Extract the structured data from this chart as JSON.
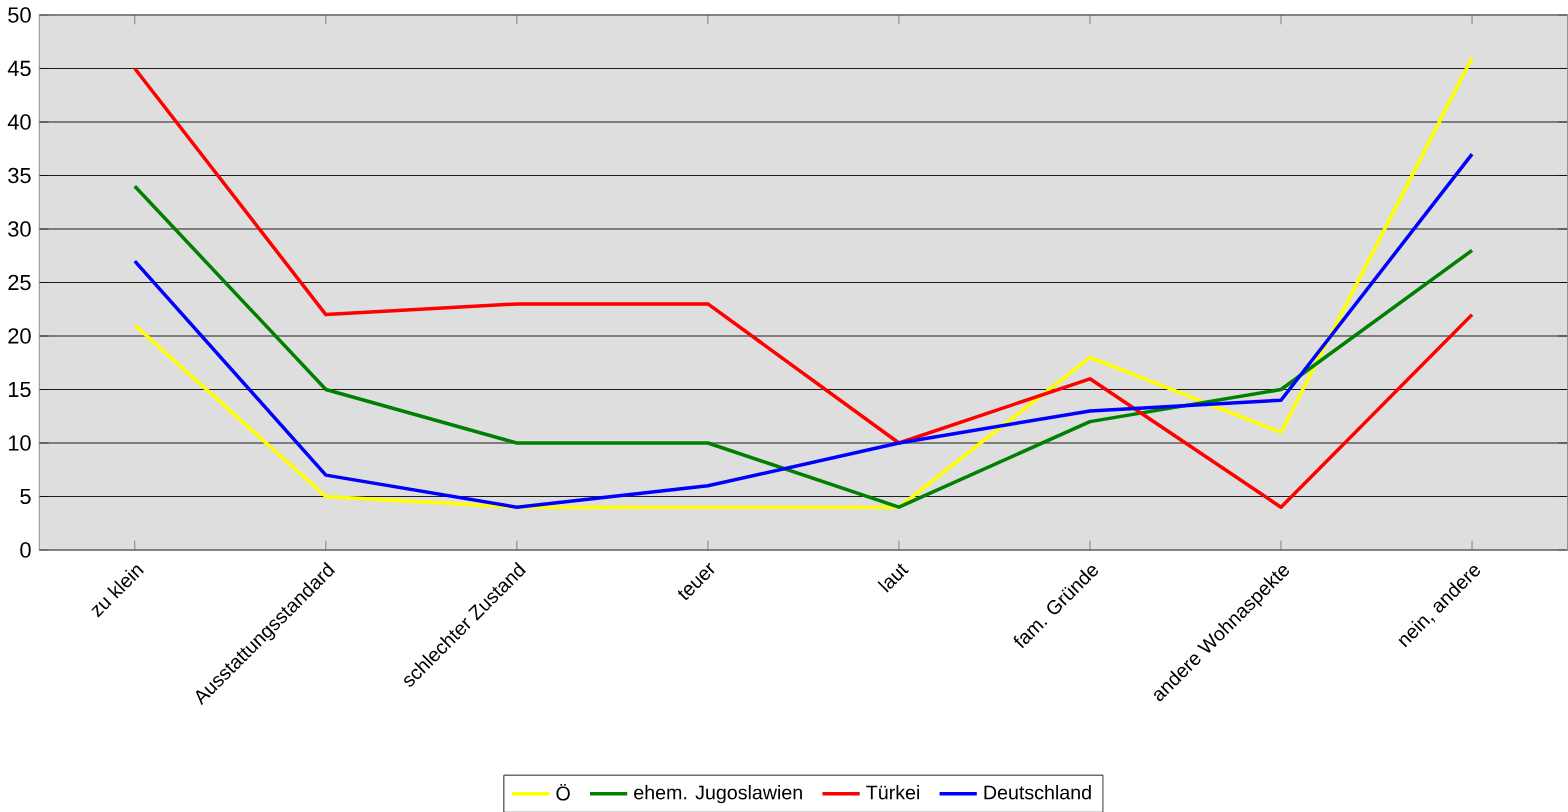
{
  "chart_data": {
    "type": "line",
    "categories": [
      "zu klein",
      "Ausstattungsstandard",
      "schlechter Zustand",
      "teuer",
      "laut",
      "fam. Gründe",
      "andere Wohnaspekte",
      "nein, andere"
    ],
    "series": [
      {
        "name": "Ö",
        "color": "#ffff00",
        "values": [
          21,
          5,
          4,
          4,
          4,
          18,
          11,
          46
        ]
      },
      {
        "name": "ehem. Jugoslawien",
        "color": "#008000",
        "values": [
          34,
          15,
          10,
          10,
          4,
          12,
          15,
          28
        ]
      },
      {
        "name": "Türkei",
        "color": "#ff0000",
        "values": [
          45,
          22,
          23,
          23,
          10,
          16,
          4,
          22
        ]
      },
      {
        "name": "Deutschland",
        "color": "#0000ff",
        "values": [
          27,
          7,
          4,
          6,
          10,
          13,
          14,
          37
        ]
      }
    ],
    "ylim": [
      0,
      50
    ],
    "yticks": [
      0,
      5,
      10,
      15,
      20,
      25,
      30,
      35,
      40,
      45,
      50
    ],
    "grid": "y",
    "legend": "bottom",
    "marker": "none",
    "line_style": "solid"
  }
}
